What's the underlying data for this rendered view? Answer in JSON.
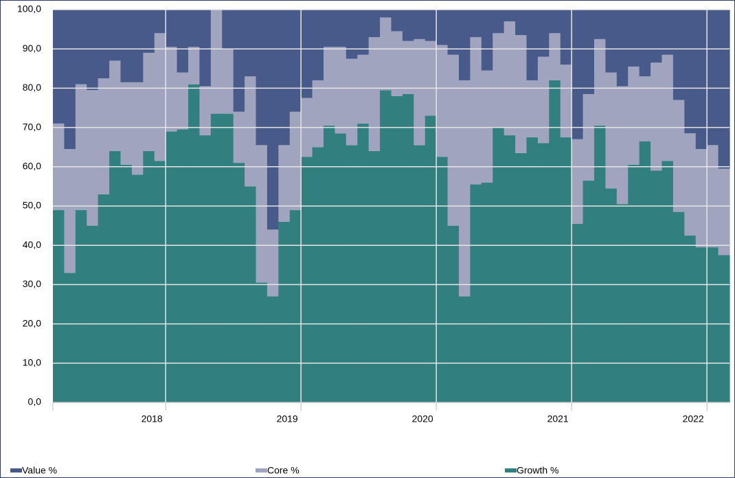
{
  "chart_data": {
    "type": "stacked-step-area",
    "categories": [
      null,
      null,
      null,
      null,
      null,
      null,
      null,
      null,
      null,
      null,
      "2018",
      null,
      null,
      null,
      null,
      null,
      null,
      null,
      null,
      null,
      null,
      null,
      "2019",
      null,
      null,
      null,
      null,
      null,
      null,
      null,
      null,
      null,
      null,
      null,
      "2020",
      null,
      null,
      null,
      null,
      null,
      null,
      null,
      null,
      null,
      null,
      null,
      "2021",
      null,
      null,
      null,
      null,
      null,
      null,
      null,
      null,
      null,
      null,
      null,
      "2022",
      null
    ],
    "series": [
      {
        "name": "Value %",
        "color": "#485a8a",
        "values": [
          29,
          35.5,
          19,
          20.5,
          17.5,
          13,
          18.5,
          18.5,
          11,
          6,
          9.5,
          16,
          9.5,
          19.5,
          0,
          10,
          26,
          17,
          34.5,
          56,
          34.5,
          26,
          22.5,
          18,
          9.5,
          9.5,
          12.5,
          11.5,
          7,
          2,
          5.5,
          8,
          7.5,
          8,
          9,
          11.5,
          18,
          7,
          15.5,
          6,
          3,
          6.5,
          18,
          12,
          6,
          14,
          33,
          21.5,
          7.5,
          16,
          19.5,
          14.5,
          17,
          13.5,
          11.5,
          23,
          31.5,
          35.5,
          34.5,
          40.5
        ]
      },
      {
        "name": "Core %",
        "color": "#a0a4bf",
        "values": [
          22,
          31.5,
          32,
          34.5,
          29.5,
          23,
          21,
          23.5,
          25,
          32.5,
          21.5,
          14.5,
          9.5,
          12.5,
          26.5,
          16.5,
          13,
          28,
          35,
          17,
          19.5,
          25,
          15,
          17,
          20,
          22,
          22,
          17.5,
          29,
          18.5,
          16.5,
          13.5,
          27,
          19,
          28.5,
          43.5,
          55,
          37.5,
          28.5,
          24,
          29,
          30,
          14.5,
          22,
          12,
          18.5,
          21.5,
          22,
          22,
          29.5,
          30,
          25,
          16.5,
          27.5,
          27,
          28.5,
          26,
          25,
          26,
          22
        ]
      },
      {
        "name": "Growth %",
        "color": "#327f80",
        "values": [
          49,
          33,
          49,
          45,
          53,
          64,
          60.5,
          58,
          64,
          61.5,
          69,
          69.5,
          81,
          68,
          73.5,
          73.5,
          61,
          55,
          30.5,
          27,
          46,
          49,
          62.5,
          65,
          70.5,
          68.5,
          65.5,
          71,
          64,
          79.5,
          78,
          78.5,
          65.5,
          73,
          62.5,
          45,
          27,
          55.5,
          56,
          70,
          68,
          63.5,
          67.5,
          66,
          82,
          67.5,
          45.5,
          56.5,
          70.5,
          54.5,
          50.5,
          60.5,
          66.5,
          59,
          61.5,
          48.5,
          42.5,
          39.5,
          39.5,
          37.5
        ]
      }
    ],
    "ylim": [
      0,
      100
    ],
    "yticks": [
      {
        "value": 0,
        "label": "0,0"
      },
      {
        "value": 10,
        "label": "10,0"
      },
      {
        "value": 20,
        "label": "20,0"
      },
      {
        "value": 30,
        "label": "30,0"
      },
      {
        "value": 40,
        "label": "40,0"
      },
      {
        "value": 50,
        "label": "50,0"
      },
      {
        "value": 60,
        "label": "60,0"
      },
      {
        "value": 70,
        "label": "70,0"
      },
      {
        "value": 80,
        "label": "80,0"
      },
      {
        "value": 90,
        "label": "90,0"
      },
      {
        "value": 100,
        "label": "100,0"
      }
    ],
    "grid": true
  }
}
